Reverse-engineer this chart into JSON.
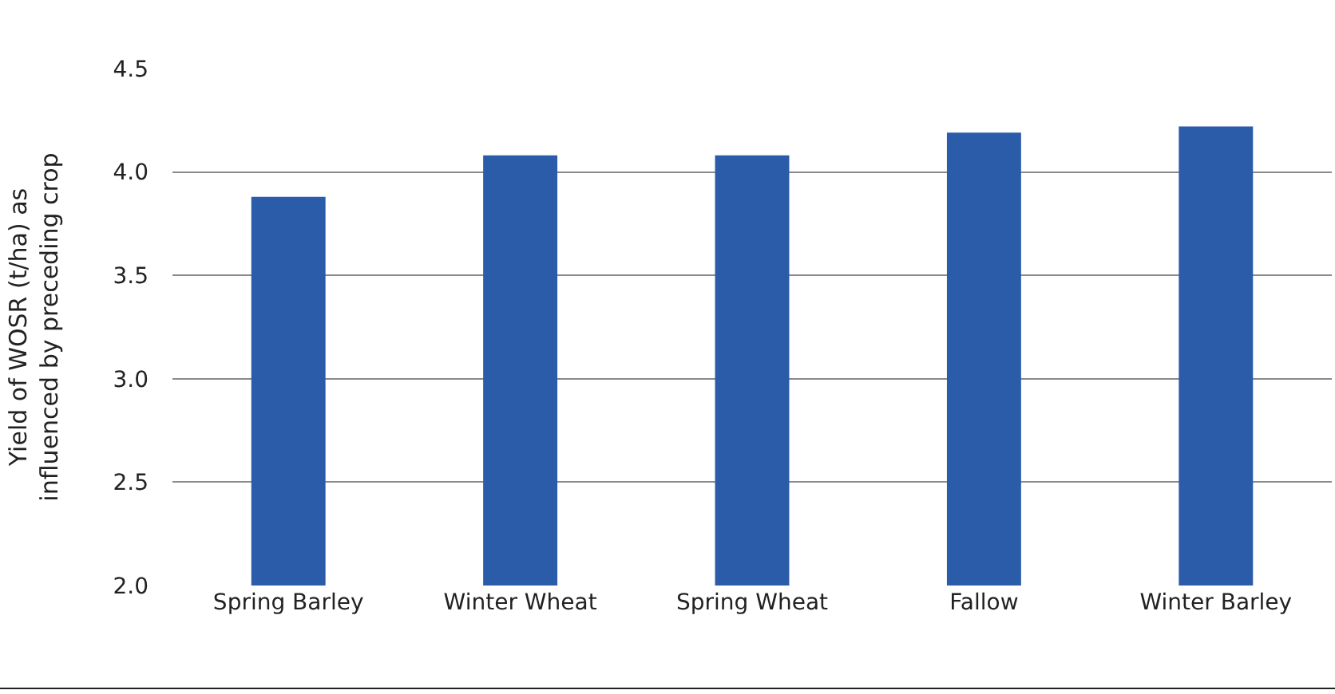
{
  "chart_data": {
    "type": "bar",
    "ylabel": "Yield of WOSR (t/ha) as\ninfluenced by preceding crop",
    "categories": [
      "Spring Barley",
      "Winter Wheat",
      "Spring Wheat",
      "Fallow",
      "Winter Barley"
    ],
    "values": [
      3.88,
      4.08,
      4.08,
      4.19,
      4.22
    ],
    "color": "#2b5ca9",
    "ylim": [
      2,
      4.5
    ],
    "yticks": [
      {
        "value": 2,
        "label": "2.0"
      },
      {
        "value": 2.5,
        "label": "2.5"
      },
      {
        "value": 3,
        "label": "3.0"
      },
      {
        "value": 3.5,
        "label": "3.5"
      },
      {
        "value": 4,
        "label": "4.0"
      },
      {
        "value": 4.5,
        "label": "4.5"
      }
    ],
    "grid": "y"
  }
}
